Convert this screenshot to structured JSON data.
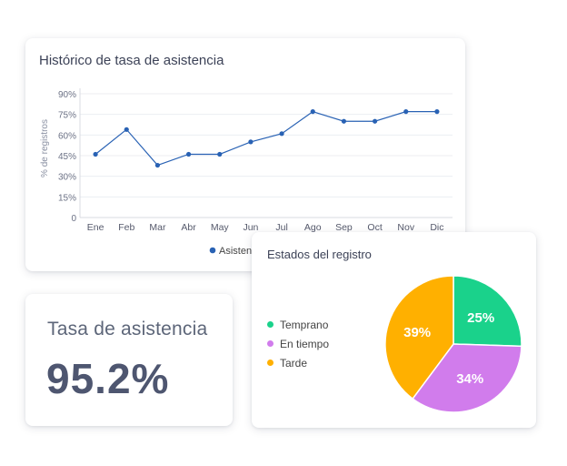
{
  "line_chart": {
    "title": "Histórico de tasa de asistencia",
    "legend_label": "Asistencia",
    "ylabel": "% de registros",
    "y_ticks": [
      "90%",
      "75%",
      "60%",
      "45%",
      "30%",
      "15%",
      "0"
    ],
    "color": "#2962b4"
  },
  "kpi": {
    "label": "Tasa de asistencia",
    "value": "95.2%"
  },
  "pie_chart": {
    "title": "Estados del registro"
  },
  "chart_data": [
    {
      "type": "line",
      "title": "Histórico de tasa de asistencia",
      "xlabel": "",
      "ylabel": "% de registros",
      "ylim": [
        0,
        90
      ],
      "grid": true,
      "legend_position": "bottom",
      "categories": [
        "Ene",
        "Feb",
        "Mar",
        "Abr",
        "May",
        "Jun",
        "Jul",
        "Ago",
        "Sep",
        "Oct",
        "Nov",
        "Dic"
      ],
      "series": [
        {
          "name": "Asistencia",
          "color": "#2962b4",
          "values": [
            46,
            64,
            38,
            46,
            46,
            55,
            61,
            77,
            70,
            70,
            77,
            77
          ]
        }
      ]
    },
    {
      "type": "pie",
      "title": "Estados del registro",
      "legend_position": "left",
      "slices": [
        {
          "label": "Temprano",
          "value": 25,
          "display": "25%",
          "color": "#1ad28b"
        },
        {
          "label": "En tiempo",
          "value": 34,
          "display": "34%",
          "color": "#d17cec"
        },
        {
          "label": "Tarde",
          "value": 39,
          "display": "39%",
          "color": "#ffb000"
        }
      ]
    }
  ]
}
